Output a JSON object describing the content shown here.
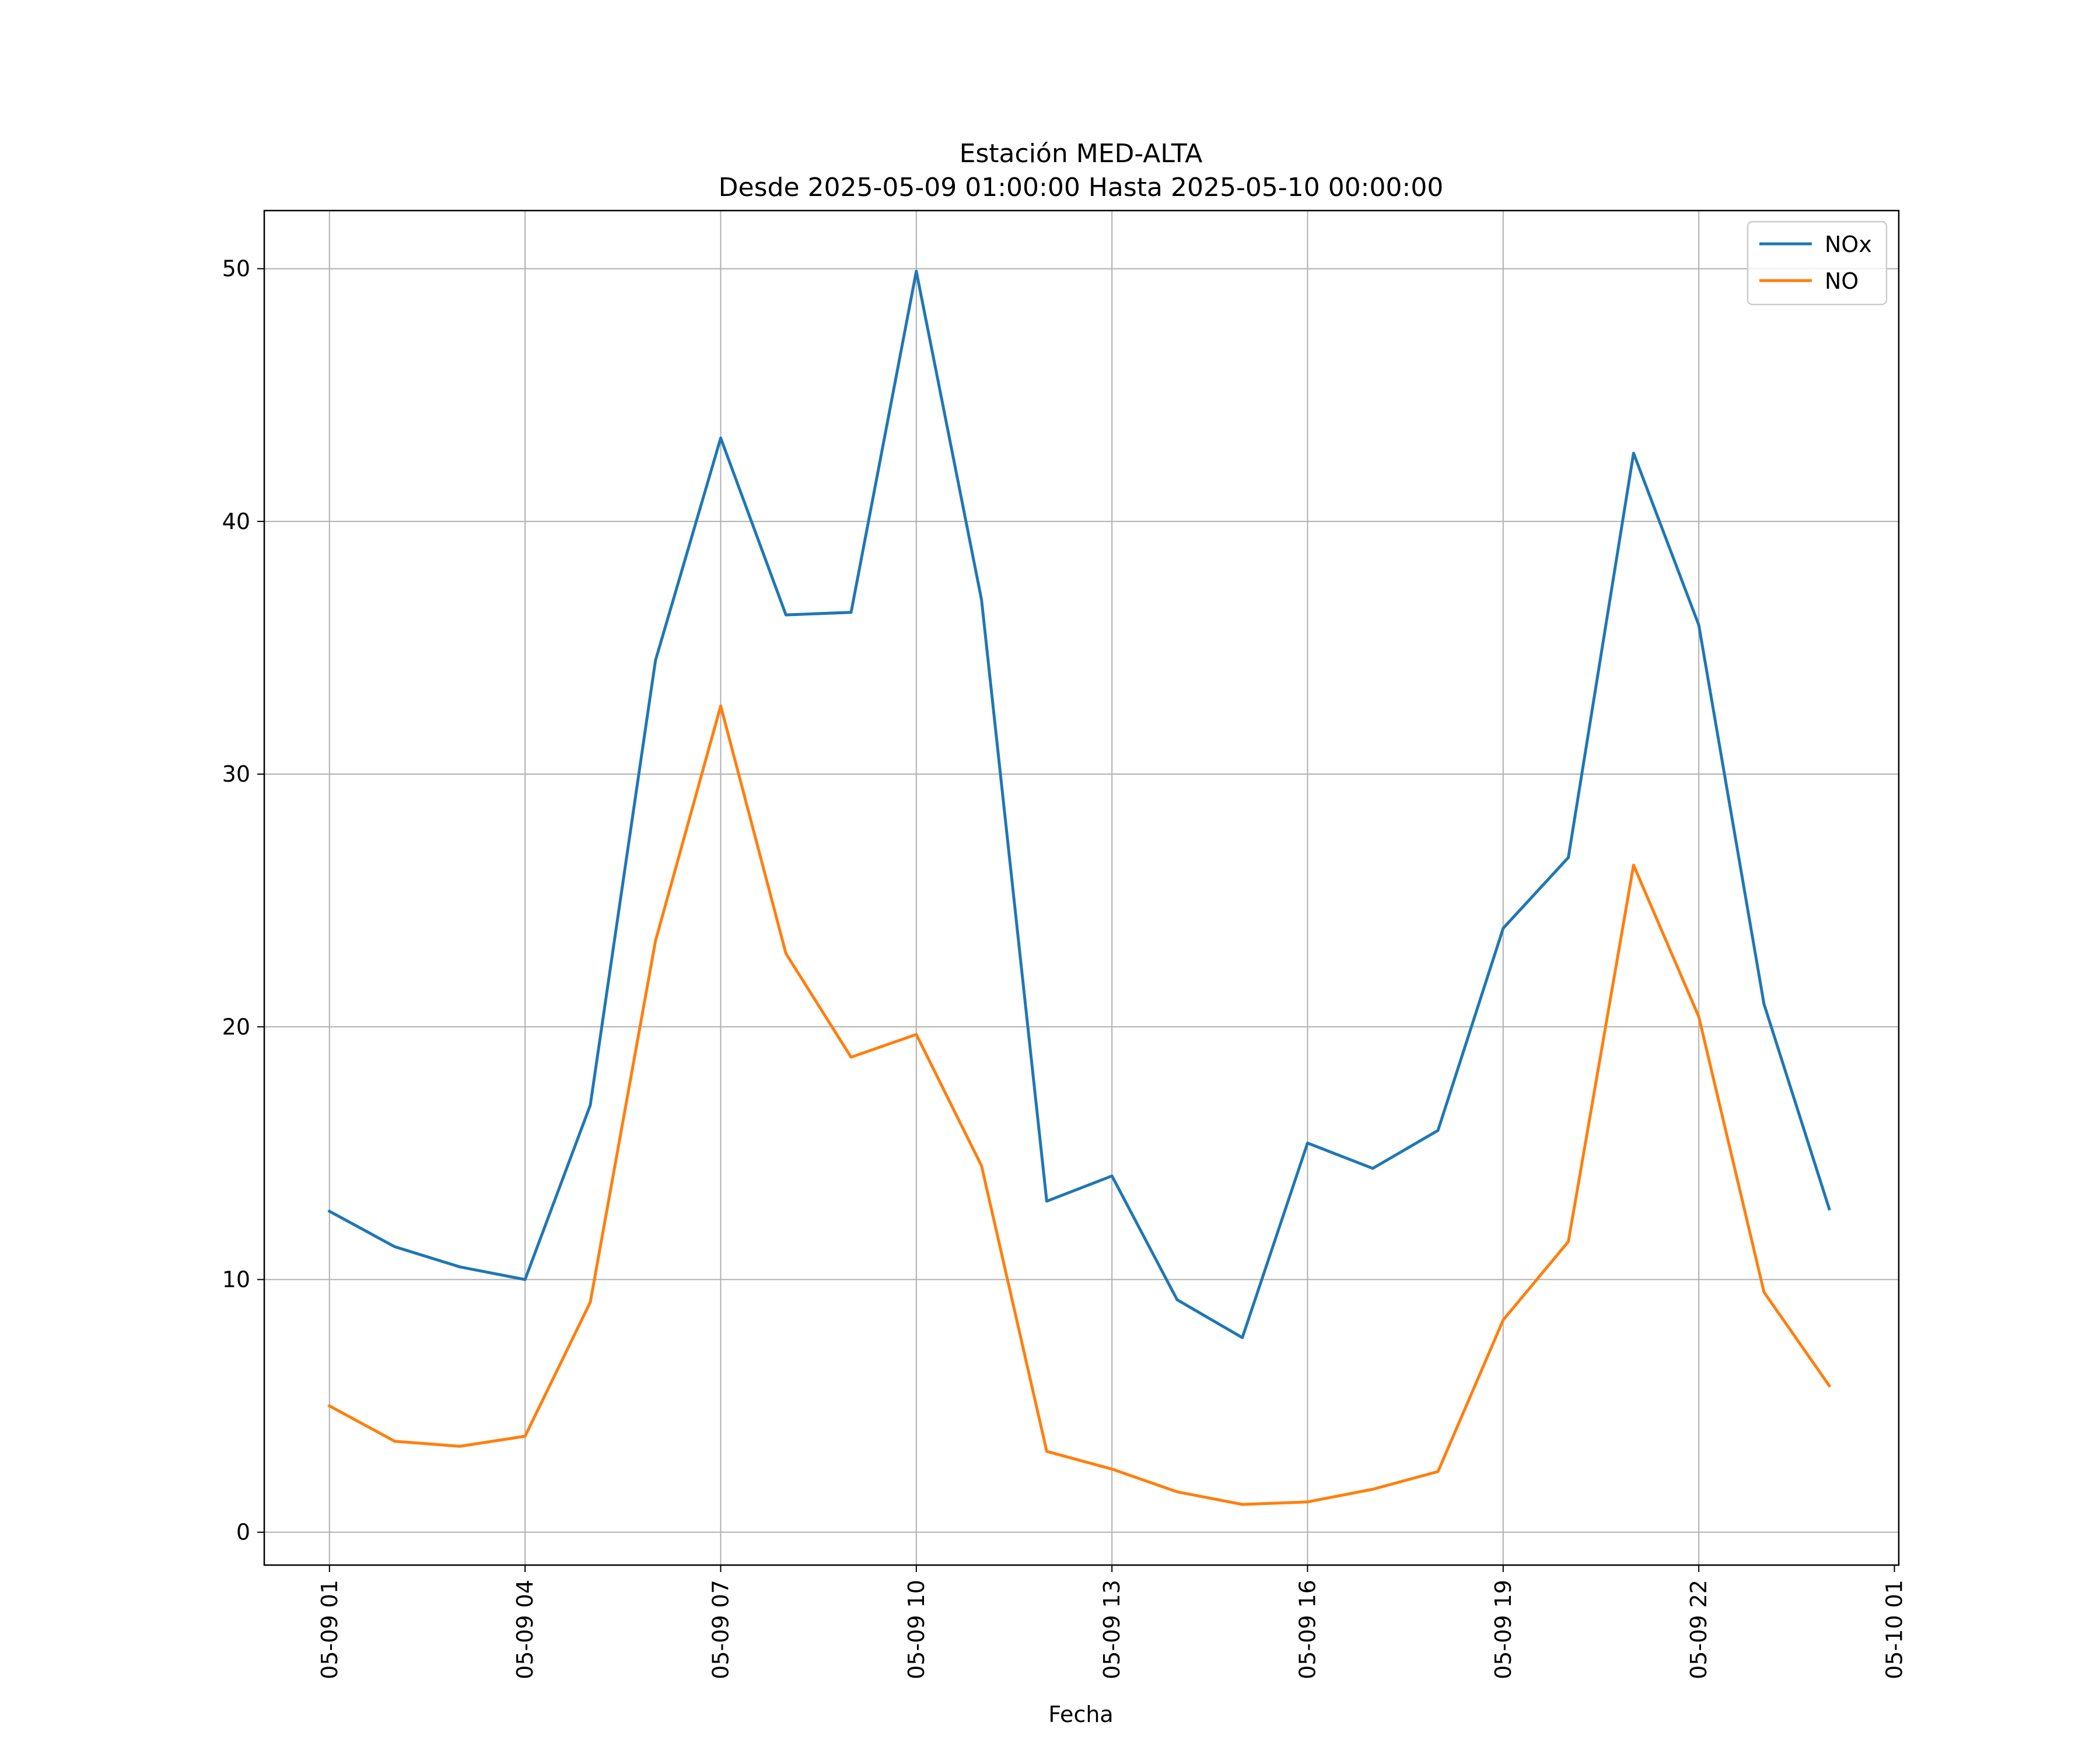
{
  "chart_data": {
    "type": "line",
    "title": "Estación MED-ALTA",
    "subtitle": "Desde 2025-05-09 01:00:00 Hasta 2025-05-10 00:00:00",
    "xlabel": "Fecha",
    "ylabel": "",
    "x": [
      "2025-05-09 01:00",
      "2025-05-09 02:00",
      "2025-05-09 03:00",
      "2025-05-09 04:00",
      "2025-05-09 05:00",
      "2025-05-09 06:00",
      "2025-05-09 07:00",
      "2025-05-09 08:00",
      "2025-05-09 09:00",
      "2025-05-09 10:00",
      "2025-05-09 11:00",
      "2025-05-09 12:00",
      "2025-05-09 13:00",
      "2025-05-09 14:00",
      "2025-05-09 15:00",
      "2025-05-09 16:00",
      "2025-05-09 17:00",
      "2025-05-09 18:00",
      "2025-05-09 19:00",
      "2025-05-09 20:00",
      "2025-05-09 21:00",
      "2025-05-09 22:00",
      "2025-05-09 23:00",
      "2025-05-10 00:00"
    ],
    "xlim": [
      "2025-05-09 00:00",
      "2025-05-10 01:04"
    ],
    "ylim": [
      -1.3,
      52.3
    ],
    "x_ticks": [
      "05-09 01",
      "05-09 04",
      "05-09 07",
      "05-09 10",
      "05-09 13",
      "05-09 16",
      "05-09 19",
      "05-09 22",
      "05-10 01"
    ],
    "y_ticks": [
      0,
      10,
      20,
      30,
      40,
      50
    ],
    "grid": true,
    "legend_position": "top-right",
    "series": [
      {
        "name": "NOx",
        "color": "#1f77b4",
        "values": [
          12.7,
          11.3,
          10.5,
          10.0,
          16.9,
          34.5,
          43.3,
          36.3,
          36.4,
          49.9,
          36.9,
          13.1,
          14.1,
          9.2,
          7.7,
          15.4,
          14.4,
          15.9,
          23.9,
          26.7,
          42.7,
          35.9,
          20.9,
          12.8
        ]
      },
      {
        "name": "NO",
        "color": "#ff7f0e",
        "values": [
          5.0,
          3.6,
          3.4,
          3.8,
          9.1,
          23.4,
          32.7,
          22.9,
          18.8,
          19.7,
          14.5,
          3.2,
          2.5,
          1.6,
          1.1,
          1.2,
          1.7,
          2.4,
          8.4,
          11.5,
          26.4,
          20.4,
          9.5,
          5.8
        ]
      }
    ]
  }
}
